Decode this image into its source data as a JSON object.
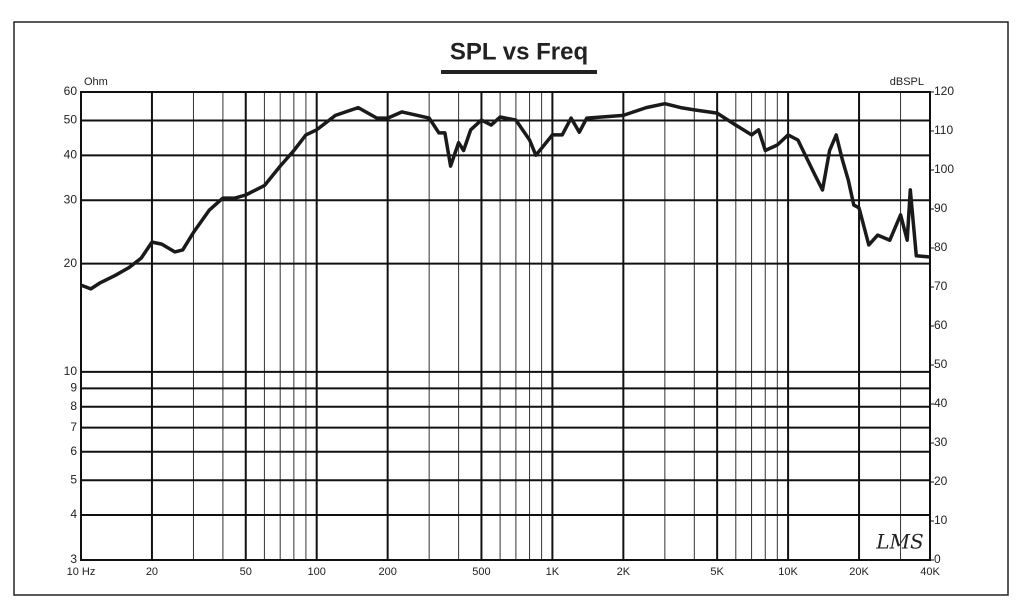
{
  "chart_data": {
    "type": "line",
    "title": "SPL vs Freq",
    "ylabel": "Ohm",
    "y2label": "dBSPL",
    "annotation": "LMS",
    "xscale": "log",
    "yscale": "log",
    "grid": true,
    "xlim": [
      10,
      40000
    ],
    "xticks": [
      {
        "value": 10,
        "label": "10 Hz"
      },
      20,
      50,
      100,
      200,
      500,
      {
        "value": 1000,
        "label": "1K"
      },
      {
        "value": 2000,
        "label": "2K"
      },
      {
        "value": 5000,
        "label": "5K"
      },
      {
        "value": 10000,
        "label": "10K"
      },
      {
        "value": 20000,
        "label": "20K"
      },
      {
        "value": 40000,
        "label": "40K"
      }
    ],
    "xminor_ticks": [
      30,
      40,
      60,
      70,
      80,
      90,
      300,
      400,
      600,
      700,
      800,
      900,
      3000,
      4000,
      6000,
      7000,
      8000,
      9000,
      30000
    ],
    "ylim": [
      3,
      60
    ],
    "yticks": [
      3,
      4,
      5,
      6,
      7,
      8,
      9,
      10,
      20,
      30,
      40,
      50,
      60
    ],
    "y2lim": [
      0,
      120
    ],
    "y2ticks": [
      0,
      10,
      20,
      30,
      40,
      50,
      60,
      70,
      80,
      90,
      100,
      110,
      120
    ],
    "x": [
      10,
      11,
      12,
      14,
      16,
      18,
      20,
      22,
      25,
      27,
      30,
      35,
      40,
      45,
      50,
      60,
      70,
      80,
      90,
      100,
      120,
      150,
      180,
      200,
      230,
      300,
      330,
      350,
      370,
      400,
      420,
      450,
      500,
      550,
      600,
      700,
      800,
      850,
      900,
      1000,
      1100,
      1200,
      1300,
      1400,
      2000,
      2500,
      3000,
      3500,
      4000,
      5000,
      6000,
      7000,
      7500,
      8000,
      9000,
      10000,
      11000,
      13000,
      14000,
      15000,
      16000,
      17000,
      18000,
      19000,
      20000,
      22000,
      24000,
      27000,
      30000,
      32000,
      33000,
      35000,
      40000
    ],
    "series": [
      {
        "color": "#1a1a1a",
        "axis": "y2",
        "values": [
          70.5,
          69.5,
          71,
          73,
          75,
          77.4,
          81.5,
          81,
          79,
          79.5,
          84,
          89.7,
          92.8,
          92.8,
          93.6,
          96,
          101,
          105,
          109,
          110.3,
          114,
          116,
          113.3,
          113.3,
          114.9,
          113.3,
          109.5,
          109.5,
          101,
          107,
          105,
          110.3,
          112.8,
          111.5,
          113.6,
          112.8,
          107.7,
          103.8,
          105.6,
          109,
          109,
          113.3,
          109.7,
          113.3,
          114,
          116,
          117,
          116,
          115.4,
          114.6,
          111.5,
          109,
          110.3,
          105,
          106.4,
          109,
          107.7,
          98.7,
          94.9,
          105,
          109,
          102.6,
          97.4,
          91,
          90.3,
          80.8,
          83.3,
          82,
          88.5,
          82,
          94.9,
          78,
          77.7
        ]
      }
    ]
  }
}
